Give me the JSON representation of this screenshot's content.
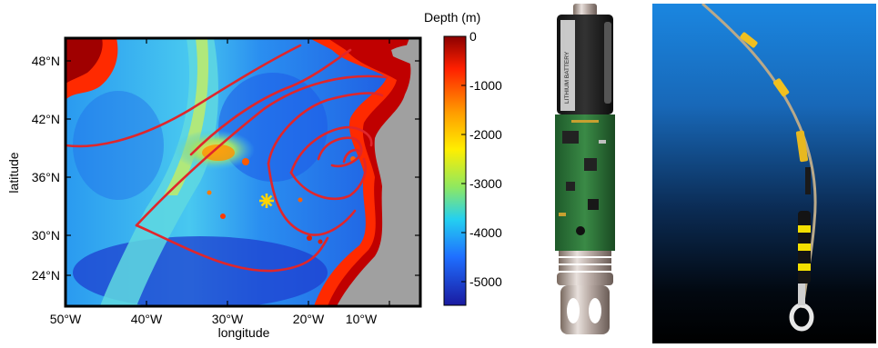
{
  "map": {
    "xlabel": "longitude",
    "ylabel": "latitude",
    "x_ticks": [
      "50°W",
      "40°W",
      "30°W",
      "20°W",
      "10°W"
    ],
    "y_ticks": [
      "48°N",
      "42°N",
      "36°N",
      "30°N",
      "24°N"
    ],
    "colorbar": {
      "title": "Depth (m)",
      "ticks": [
        "0",
        "-1000",
        "-2000",
        "-3000",
        "-4000",
        "-5000"
      ]
    },
    "colors": {
      "land": "#a0a0a0",
      "tracks": "#e0262b",
      "deploy_marker": "#ffd400"
    }
  },
  "device": {
    "battery_text": "LITHIUM BATTERY"
  }
}
